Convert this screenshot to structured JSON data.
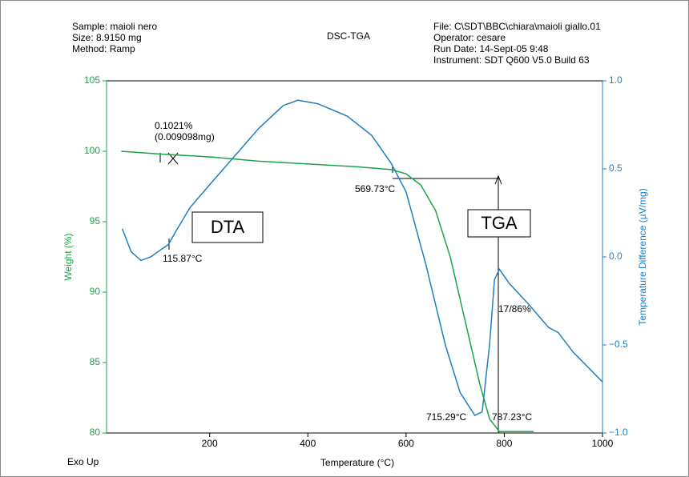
{
  "chart_data": {
    "type": "line",
    "title": "DSC-TGA",
    "header_left": [
      "Sample: maioli nero",
      "Size: 8.9150 mg",
      "Method: Ramp"
    ],
    "header_right": [
      "File: C\\SDT\\BBC\\chiara\\maioli giallo.01",
      "Operator: cesare",
      "Run Date: 14-Sept-05 9:48",
      "Instrument: SDT Q600 V5.0 Build 63"
    ],
    "corner_label": "Exo Up",
    "x_label": "Temperature (°C)",
    "y_label": "Weight (%)",
    "y2_label": "Temperature Difference (µV/mg)",
    "xlim": [
      -10,
      1000
    ],
    "xticks": [
      200,
      400,
      600,
      800,
      1000
    ],
    "ylim": [
      80,
      105
    ],
    "yticks": [
      80,
      85,
      90,
      95,
      100,
      105
    ],
    "y2lim": [
      -1.0,
      1.0
    ],
    "y2ticks": [
      {
        "value": -1.0,
        "label": "−1.0"
      },
      {
        "value": -0.5,
        "label": "−0.5"
      },
      {
        "value": 0,
        "label": "0.0"
      },
      {
        "value": 0.5,
        "label": "0.5"
      },
      {
        "value": 1.0,
        "label": "1.0"
      }
    ],
    "series": [
      {
        "name": "TGA",
        "color": "#1aa548",
        "x": [
          20,
          100,
          200,
          300,
          400,
          500,
          569.73,
          600,
          630,
          660,
          690,
          720,
          750,
          770,
          790,
          860
        ],
        "values": [
          100,
          99.8,
          99.6,
          99.3,
          99.1,
          98.9,
          98.7,
          98.4,
          97.6,
          95.8,
          92.5,
          88,
          83.5,
          81,
          80.1,
          80.1
        ]
      },
      {
        "name": "DTA",
        "color": "#1f7fc0",
        "axis": "y2",
        "x": [
          22,
          40,
          60,
          80,
          100,
          115.87,
          130,
          160,
          200,
          250,
          300,
          350,
          380,
          420,
          480,
          530,
          570,
          600,
          640,
          680,
          710,
          740,
          755,
          770,
          780,
          790,
          810,
          850,
          890,
          910,
          940,
          1000
        ],
        "values": [
          0.16,
          0.03,
          -0.02,
          0,
          0.04,
          0.07,
          0.14,
          0.28,
          0.41,
          0.57,
          0.73,
          0.86,
          0.89,
          0.87,
          0.8,
          0.69,
          0.53,
          0.37,
          -0.04,
          -0.5,
          -0.77,
          -0.9,
          -0.88,
          -0.5,
          -0.13,
          -0.07,
          -0.15,
          -0.27,
          -0.4,
          -0.43,
          -0.54,
          -0.71
        ]
      }
    ],
    "annotations": [
      "0.1021%",
      "(0.009098mg)",
      "569.73°C",
      "DTA",
      "TGA",
      "115.87°C",
      "715.29°C",
      "787.23°C",
      "17/86%"
    ]
  }
}
